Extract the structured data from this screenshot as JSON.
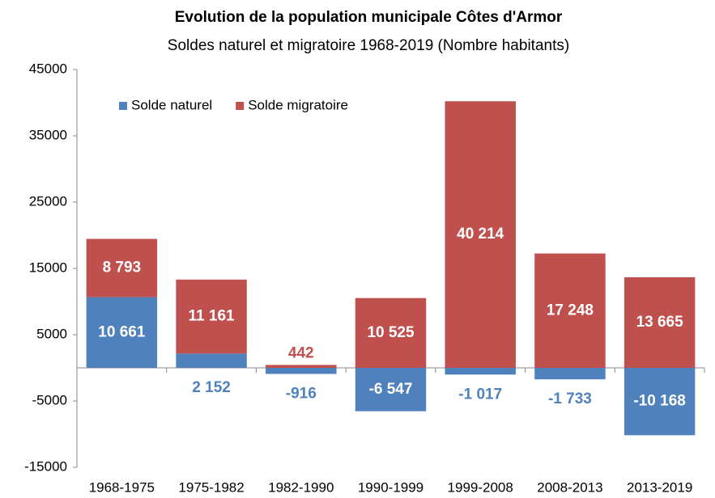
{
  "chart_data": {
    "type": "stacked_bar",
    "title": "Evolution de la population municipale  Côtes d'Armor",
    "subtitle": "Soldes naturel et migratoire 1968-2019 (Nombre habitants)",
    "categories": [
      "1968-1975",
      "1975-1982",
      "1982-1990",
      "1990-1999",
      "1999-2008",
      "2008-2013",
      "2013-2019"
    ],
    "series": [
      {
        "name": "Solde naturel",
        "color": "#4f81bd",
        "values": [
          10661,
          2152,
          -916,
          -6547,
          -1017,
          -1733,
          -10168
        ],
        "value_labels": [
          "10 661",
          "2 152",
          "-916",
          "-6 547",
          "-1 017",
          "-1 733",
          "-10 168"
        ]
      },
      {
        "name": "Solde migratoire",
        "color": "#c0504d",
        "values": [
          8793,
          11161,
          442,
          10525,
          40214,
          17248,
          13665
        ],
        "value_labels": [
          "8 793",
          "11 161",
          "442",
          "10 525",
          "40 214",
          "17 248",
          "13 665"
        ]
      }
    ],
    "ylim": [
      -15000,
      45000
    ],
    "yticks": [
      -15000,
      -5000,
      5000,
      15000,
      25000,
      35000,
      45000
    ],
    "legend": "top-left"
  }
}
